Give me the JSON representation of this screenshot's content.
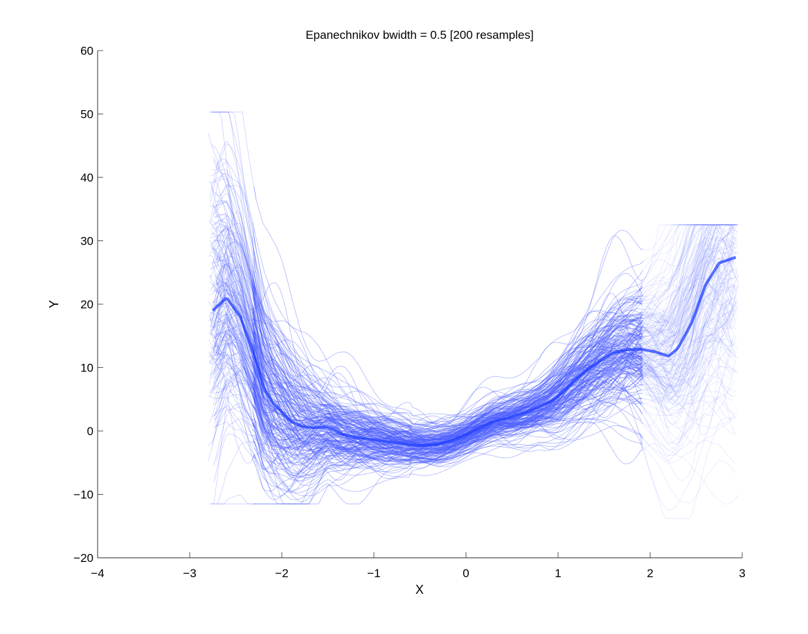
{
  "chart_data": {
    "type": "line",
    "title": "Epanechnikov bwidth = 0.5 [200 resamples]",
    "xlabel": "X",
    "ylabel": "Y",
    "xlim": [
      -4,
      3
    ],
    "ylim": [
      -20,
      60
    ],
    "xticks": [
      -4,
      -3,
      -2,
      -1,
      0,
      1,
      2,
      3
    ],
    "yticks": [
      -20,
      -10,
      0,
      10,
      20,
      30,
      40,
      50,
      60
    ],
    "xtick_labels": [
      "−4",
      "−3",
      "−2",
      "−1",
      "0",
      "1",
      "2",
      "3"
    ],
    "ytick_labels": [
      "−20",
      "−10",
      "0",
      "10",
      "20",
      "30",
      "40",
      "50",
      "60"
    ],
    "grid": false,
    "legend": null,
    "n_resamples": 200,
    "series_color": "#1f3fff",
    "series": [
      {
        "name": "central estimate (bold)",
        "x": [
          -2.75,
          -2.6,
          -2.45,
          -2.3,
          -2.2,
          -2.1,
          -2.0,
          -1.9,
          -1.8,
          -1.65,
          -1.5,
          -1.35,
          -1.2,
          -1.0,
          -0.8,
          -0.6,
          -0.45,
          -0.3,
          -0.15,
          0.0,
          0.15,
          0.3,
          0.5,
          0.7,
          0.9,
          1.0,
          1.15,
          1.3,
          1.45,
          1.6,
          1.75,
          1.9,
          2.05,
          2.2,
          2.3,
          2.45,
          2.6,
          2.75,
          2.95
        ],
        "values": [
          19,
          21,
          18,
          12,
          7,
          4.5,
          3,
          1.5,
          0.8,
          0.5,
          0.6,
          -0.5,
          -1.0,
          -1.4,
          -1.8,
          -2.2,
          -2.3,
          -2.1,
          -1.5,
          -0.6,
          0.5,
          1.5,
          2.2,
          3.2,
          4.5,
          5.5,
          7.5,
          9.5,
          11,
          12.3,
          12.8,
          12.9,
          12.5,
          11.8,
          13,
          17,
          23,
          26.5,
          27.5
        ]
      }
    ],
    "envelope": {
      "description": "200 bootstrap resample curves; spread widens near the edges, clipped at extremes",
      "left_clip_y_max": 50.3,
      "right_clip_y_max": 32.5,
      "right_clip_y_min": -13.8
    }
  }
}
